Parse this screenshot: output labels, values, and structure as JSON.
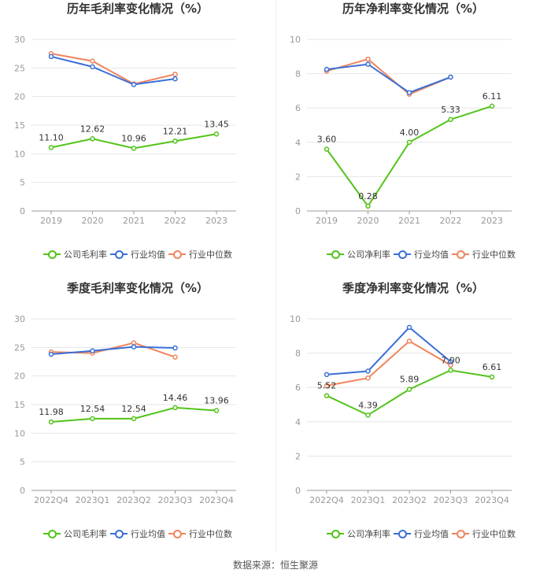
{
  "source": "数据来源：恒生聚源",
  "legend_labels": {
    "gross": [
      "公司毛利率",
      "行业均值",
      "行业中位数"
    ],
    "net": [
      "公司净利率",
      "行业均值",
      "行业中位数"
    ]
  },
  "colors": {
    "company": "#52c41a",
    "avg": "#3a6fd8",
    "median": "#f0845c",
    "grid": "#e6e6e6",
    "axis": "#999999"
  },
  "chart_data": [
    {
      "type": "line",
      "title": "历年毛利率变化情况（%）",
      "categories": [
        "2019",
        "2020",
        "2021",
        "2022",
        "2023"
      ],
      "ylim": [
        0,
        30
      ],
      "yticks": [
        0,
        5,
        10,
        15,
        20,
        25,
        30
      ],
      "grid": true,
      "legend": "bottom",
      "series": [
        {
          "name": "公司毛利率",
          "values": [
            11.1,
            12.62,
            10.96,
            12.21,
            13.45
          ],
          "labels": [
            "11.10",
            "12.62",
            "10.96",
            "12.21",
            "13.45"
          ]
        },
        {
          "name": "行业均值",
          "values": [
            27.0,
            25.2,
            22.1,
            23.1,
            null
          ]
        },
        {
          "name": "行业中位数",
          "values": [
            27.5,
            26.2,
            22.2,
            23.9,
            null
          ]
        }
      ]
    },
    {
      "type": "line",
      "title": "历年净利率变化情况（%）",
      "categories": [
        "2019",
        "2020",
        "2021",
        "2022",
        "2023"
      ],
      "ylim": [
        0,
        10
      ],
      "yticks": [
        0,
        2,
        4,
        6,
        8,
        10
      ],
      "grid": true,
      "legend": "bottom",
      "series": [
        {
          "name": "公司净利率",
          "values": [
            3.6,
            0.28,
            4.0,
            5.33,
            6.11
          ],
          "labels": [
            "3.60",
            "0.28",
            "4.00",
            "5.33",
            "6.11"
          ]
        },
        {
          "name": "行业均值",
          "values": [
            8.25,
            8.55,
            6.9,
            7.8,
            null
          ]
        },
        {
          "name": "行业中位数",
          "values": [
            8.15,
            8.85,
            6.8,
            7.8,
            null
          ]
        }
      ]
    },
    {
      "type": "line",
      "title": "季度毛利率变化情况（%）",
      "categories": [
        "2022Q4",
        "2023Q1",
        "2023Q2",
        "2023Q3",
        "2023Q4"
      ],
      "ylim": [
        0,
        30
      ],
      "yticks": [
        0,
        5,
        10,
        15,
        20,
        25,
        30
      ],
      "grid": true,
      "legend": "bottom",
      "series": [
        {
          "name": "公司毛利率",
          "values": [
            11.98,
            12.54,
            12.54,
            14.46,
            13.96
          ],
          "labels": [
            "11.98",
            "12.54",
            "12.54",
            "14.46",
            "13.96"
          ]
        },
        {
          "name": "行业均值",
          "values": [
            23.8,
            24.4,
            25.1,
            24.9,
            null
          ]
        },
        {
          "name": "行业中位数",
          "values": [
            24.2,
            24.0,
            25.8,
            23.3,
            null
          ]
        }
      ]
    },
    {
      "type": "line",
      "title": "季度净利率变化情况（%）",
      "categories": [
        "2022Q4",
        "2023Q1",
        "2023Q2",
        "2023Q3",
        "2023Q4"
      ],
      "ylim": [
        0,
        10
      ],
      "yticks": [
        0,
        2,
        4,
        6,
        8,
        10
      ],
      "grid": true,
      "legend": "bottom",
      "series": [
        {
          "name": "公司净利率",
          "values": [
            5.52,
            4.39,
            5.89,
            7.0,
            6.61
          ],
          "labels": [
            "5.52",
            "4.39",
            "5.89",
            "7.00",
            "6.61"
          ]
        },
        {
          "name": "行业均值",
          "values": [
            6.75,
            6.95,
            9.5,
            7.5,
            null
          ]
        },
        {
          "name": "行业中位数",
          "values": [
            6.1,
            6.55,
            8.7,
            7.3,
            null
          ]
        }
      ]
    }
  ]
}
